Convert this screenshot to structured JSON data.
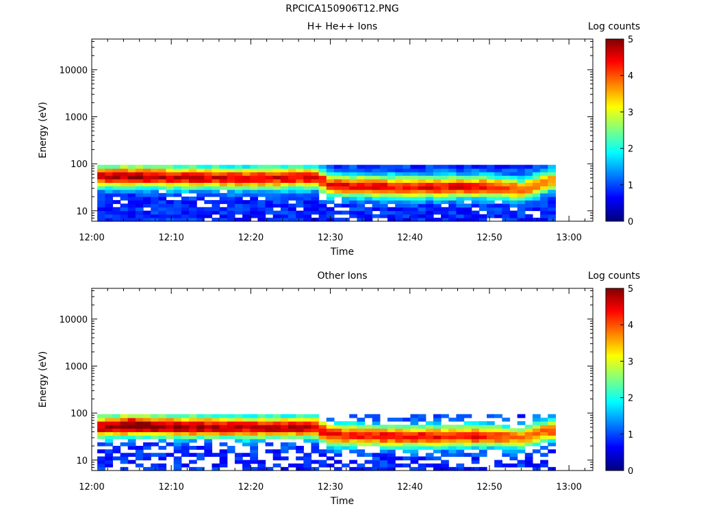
{
  "figure_title": "RPCICA150906T12.PNG",
  "chart_data": [
    {
      "type": "heatmap",
      "title": "H+ He++ Ions",
      "xlabel": "Time",
      "ylabel": "Energy (eV)",
      "x_ticks": [
        "12:00",
        "12:10",
        "12:20",
        "12:30",
        "12:40",
        "12:50",
        "13:00"
      ],
      "x_range_minutes": [
        0,
        63
      ],
      "y_scale": "log",
      "y_range": [
        6,
        45000
      ],
      "y_ticks": [
        {
          "value": 10,
          "label": "10"
        },
        {
          "value": 100,
          "label": "100"
        },
        {
          "value": 1000,
          "label": "1000"
        },
        {
          "value": 10000,
          "label": "10000"
        }
      ],
      "colorbar": {
        "label": "Log counts",
        "range": [
          0,
          5
        ],
        "ticks": [
          "0",
          "1",
          "2",
          "3",
          "4",
          "5"
        ]
      },
      "data_time_range_minutes": [
        0.7,
        58.3
      ],
      "data_energy_range_eV": [
        6,
        95
      ],
      "peak_energy_profile": [
        {
          "t": 0,
          "energy_eV": 55,
          "log_counts": 3.8
        },
        {
          "t": 5,
          "energy_eV": 55,
          "log_counts": 4.0
        },
        {
          "t": 10,
          "energy_eV": 52,
          "log_counts": 3.8
        },
        {
          "t": 20,
          "energy_eV": 50,
          "log_counts": 3.7
        },
        {
          "t": 28,
          "energy_eV": 52,
          "log_counts": 3.7
        },
        {
          "t": 30,
          "energy_eV": 35,
          "log_counts": 3.6
        },
        {
          "t": 40,
          "energy_eV": 32,
          "log_counts": 3.6
        },
        {
          "t": 50,
          "energy_eV": 33,
          "log_counts": 3.6
        },
        {
          "t": 54,
          "energy_eV": 28,
          "log_counts": 3.2
        },
        {
          "t": 58,
          "energy_eV": 45,
          "log_counts": 2.8
        }
      ]
    },
    {
      "type": "heatmap",
      "title": "Other Ions",
      "xlabel": "Time",
      "ylabel": "Energy (eV)",
      "x_ticks": [
        "12:00",
        "12:10",
        "12:20",
        "12:30",
        "12:40",
        "12:50",
        "13:00"
      ],
      "x_range_minutes": [
        0,
        63
      ],
      "y_scale": "log",
      "y_range": [
        6,
        45000
      ],
      "y_ticks": [
        {
          "value": 10,
          "label": "10"
        },
        {
          "value": 100,
          "label": "100"
        },
        {
          "value": 1000,
          "label": "1000"
        },
        {
          "value": 10000,
          "label": "10000"
        }
      ],
      "colorbar": {
        "label": "Log counts",
        "range": [
          0,
          5
        ],
        "ticks": [
          "0",
          "1",
          "2",
          "3",
          "4",
          "5"
        ]
      },
      "data_time_range_minutes": [
        0.7,
        58.3
      ],
      "data_energy_range_eV": [
        6,
        95
      ],
      "peak_energy_profile": [
        {
          "t": 0,
          "energy_eV": 50,
          "log_counts": 3.8
        },
        {
          "t": 5,
          "energy_eV": 55,
          "log_counts": 4.4
        },
        {
          "t": 10,
          "energy_eV": 52,
          "log_counts": 4.1
        },
        {
          "t": 20,
          "energy_eV": 50,
          "log_counts": 3.9
        },
        {
          "t": 28,
          "energy_eV": 50,
          "log_counts": 3.9
        },
        {
          "t": 30,
          "energy_eV": 35,
          "log_counts": 3.6
        },
        {
          "t": 40,
          "energy_eV": 32,
          "log_counts": 3.6
        },
        {
          "t": 50,
          "energy_eV": 33,
          "log_counts": 3.6
        },
        {
          "t": 54,
          "energy_eV": 30,
          "log_counts": 3.0
        },
        {
          "t": 58,
          "energy_eV": 45,
          "log_counts": 3.3
        }
      ]
    }
  ]
}
